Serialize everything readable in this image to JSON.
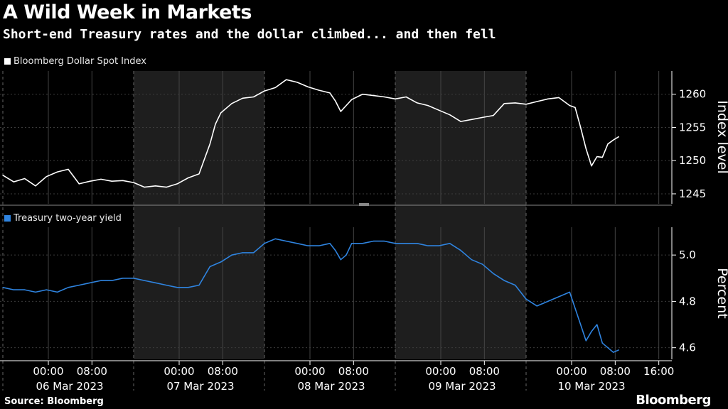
{
  "header": {
    "title": "A Wild Week in Markets",
    "subtitle": "Short-end Treasury rates and the dollar climbed... and then fell"
  },
  "footer": {
    "source": "Source: Bloomberg",
    "brand": "Bloomberg"
  },
  "colors": {
    "background": "#000000",
    "shade": "#1e1e1e",
    "dollar_line": "#ffffff",
    "yield_line": "#2f84e0"
  },
  "chart_data": [
    {
      "type": "line",
      "series": [
        {
          "name": "Bloomberg Dollar Spot Index",
          "points": [
            [
              "06 Mar 2023 00:00",
              1247.8
            ],
            [
              "06 Mar 2023 02:00",
              1246.8
            ],
            [
              "06 Mar 2023 04:00",
              1247.3
            ],
            [
              "06 Mar 2023 06:00",
              1246.2
            ],
            [
              "06 Mar 2023 08:00",
              1247.6
            ],
            [
              "06 Mar 2023 10:00",
              1248.3
            ],
            [
              "06 Mar 2023 12:00",
              1248.7
            ],
            [
              "06 Mar 2023 14:00",
              1246.5
            ],
            [
              "06 Mar 2023 16:00",
              1246.9
            ],
            [
              "06 Mar 2023 18:00",
              1247.2
            ],
            [
              "06 Mar 2023 20:00",
              1246.9
            ],
            [
              "06 Mar 2023 22:00",
              1247.0
            ],
            [
              "07 Mar 2023 00:00",
              1246.7
            ],
            [
              "07 Mar 2023 02:00",
              1246.0
            ],
            [
              "07 Mar 2023 04:00",
              1246.2
            ],
            [
              "07 Mar 2023 06:00",
              1246.0
            ],
            [
              "07 Mar 2023 08:00",
              1246.5
            ],
            [
              "07 Mar 2023 10:00",
              1247.4
            ],
            [
              "07 Mar 2023 12:00",
              1248.0
            ],
            [
              "07 Mar 2023 14:00",
              1252.5
            ],
            [
              "07 Mar 2023 15:00",
              1255.5
            ],
            [
              "07 Mar 2023 16:00",
              1257.2
            ],
            [
              "07 Mar 2023 18:00",
              1258.6
            ],
            [
              "07 Mar 2023 20:00",
              1259.4
            ],
            [
              "07 Mar 2023 22:00",
              1259.6
            ],
            [
              "08 Mar 2023 00:00",
              1260.5
            ],
            [
              "08 Mar 2023 02:00",
              1261.0
            ],
            [
              "08 Mar 2023 04:00",
              1262.2
            ],
            [
              "08 Mar 2023 06:00",
              1261.8
            ],
            [
              "08 Mar 2023 08:00",
              1261.1
            ],
            [
              "08 Mar 2023 10:00",
              1260.6
            ],
            [
              "08 Mar 2023 12:00",
              1260.2
            ],
            [
              "08 Mar 2023 13:00",
              1259.0
            ],
            [
              "08 Mar 2023 14:00",
              1257.4
            ],
            [
              "08 Mar 2023 16:00",
              1259.2
            ],
            [
              "08 Mar 2023 18:00",
              1260.0
            ],
            [
              "08 Mar 2023 20:00",
              1259.8
            ],
            [
              "08 Mar 2023 22:00",
              1259.6
            ],
            [
              "09 Mar 2023 00:00",
              1259.3
            ],
            [
              "09 Mar 2023 02:00",
              1259.6
            ],
            [
              "09 Mar 2023 04:00",
              1258.7
            ],
            [
              "09 Mar 2023 06:00",
              1258.3
            ],
            [
              "09 Mar 2023 08:00",
              1257.6
            ],
            [
              "09 Mar 2023 10:00",
              1256.9
            ],
            [
              "09 Mar 2023 12:00",
              1255.9
            ],
            [
              "09 Mar 2023 14:00",
              1256.2
            ],
            [
              "09 Mar 2023 16:00",
              1256.5
            ],
            [
              "09 Mar 2023 18:00",
              1256.8
            ],
            [
              "09 Mar 2023 20:00",
              1258.6
            ],
            [
              "09 Mar 2023 22:00",
              1258.7
            ],
            [
              "10 Mar 2023 00:00",
              1258.5
            ],
            [
              "10 Mar 2023 02:00",
              1258.9
            ],
            [
              "10 Mar 2023 04:00",
              1259.3
            ],
            [
              "10 Mar 2023 06:00",
              1259.5
            ],
            [
              "10 Mar 2023 08:00",
              1258.3
            ],
            [
              "10 Mar 2023 09:00",
              1258.0
            ],
            [
              "10 Mar 2023 10:00",
              1255.0
            ],
            [
              "10 Mar 2023 11:00",
              1251.8
            ],
            [
              "10 Mar 2023 12:00",
              1249.2
            ],
            [
              "10 Mar 2023 13:00",
              1250.6
            ],
            [
              "10 Mar 2023 14:00",
              1250.5
            ],
            [
              "10 Mar 2023 15:00",
              1252.5
            ],
            [
              "10 Mar 2023 16:00",
              1253.1
            ],
            [
              "10 Mar 2023 17:00",
              1253.6
            ]
          ]
        }
      ],
      "ylabel": "Index level",
      "yticks": [
        1245,
        1250,
        1255,
        1260
      ],
      "ylim": [
        1243.5,
        1263.5
      ]
    },
    {
      "type": "line",
      "series": [
        {
          "name": "Treasury two-year yield",
          "points": [
            [
              "06 Mar 2023 00:00",
              4.86
            ],
            [
              "06 Mar 2023 02:00",
              4.85
            ],
            [
              "06 Mar 2023 04:00",
              4.85
            ],
            [
              "06 Mar 2023 06:00",
              4.84
            ],
            [
              "06 Mar 2023 08:00",
              4.85
            ],
            [
              "06 Mar 2023 10:00",
              4.84
            ],
            [
              "06 Mar 2023 12:00",
              4.86
            ],
            [
              "06 Mar 2023 14:00",
              4.87
            ],
            [
              "06 Mar 2023 16:00",
              4.88
            ],
            [
              "06 Mar 2023 18:00",
              4.89
            ],
            [
              "06 Mar 2023 20:00",
              4.89
            ],
            [
              "06 Mar 2023 22:00",
              4.9
            ],
            [
              "07 Mar 2023 00:00",
              4.9
            ],
            [
              "07 Mar 2023 02:00",
              4.89
            ],
            [
              "07 Mar 2023 04:00",
              4.88
            ],
            [
              "07 Mar 2023 06:00",
              4.87
            ],
            [
              "07 Mar 2023 08:00",
              4.86
            ],
            [
              "07 Mar 2023 10:00",
              4.86
            ],
            [
              "07 Mar 2023 12:00",
              4.87
            ],
            [
              "07 Mar 2023 14:00",
              4.95
            ],
            [
              "07 Mar 2023 16:00",
              4.97
            ],
            [
              "07 Mar 2023 18:00",
              5.0
            ],
            [
              "07 Mar 2023 20:00",
              5.01
            ],
            [
              "07 Mar 2023 22:00",
              5.01
            ],
            [
              "08 Mar 2023 00:00",
              5.05
            ],
            [
              "08 Mar 2023 02:00",
              5.07
            ],
            [
              "08 Mar 2023 04:00",
              5.06
            ],
            [
              "08 Mar 2023 06:00",
              5.05
            ],
            [
              "08 Mar 2023 08:00",
              5.04
            ],
            [
              "08 Mar 2023 10:00",
              5.04
            ],
            [
              "08 Mar 2023 12:00",
              5.05
            ],
            [
              "08 Mar 2023 13:00",
              5.02
            ],
            [
              "08 Mar 2023 14:00",
              4.98
            ],
            [
              "08 Mar 2023 15:00",
              5.0
            ],
            [
              "08 Mar 2023 16:00",
              5.05
            ],
            [
              "08 Mar 2023 18:00",
              5.05
            ],
            [
              "08 Mar 2023 20:00",
              5.06
            ],
            [
              "08 Mar 2023 22:00",
              5.06
            ],
            [
              "09 Mar 2023 00:00",
              5.05
            ],
            [
              "09 Mar 2023 02:00",
              5.05
            ],
            [
              "09 Mar 2023 04:00",
              5.05
            ],
            [
              "09 Mar 2023 06:00",
              5.04
            ],
            [
              "09 Mar 2023 08:00",
              5.04
            ],
            [
              "09 Mar 2023 10:00",
              5.05
            ],
            [
              "09 Mar 2023 12:00",
              5.02
            ],
            [
              "09 Mar 2023 14:00",
              4.98
            ],
            [
              "09 Mar 2023 16:00",
              4.96
            ],
            [
              "09 Mar 2023 18:00",
              4.92
            ],
            [
              "09 Mar 2023 20:00",
              4.89
            ],
            [
              "09 Mar 2023 22:00",
              4.87
            ],
            [
              "10 Mar 2023 00:00",
              4.81
            ],
            [
              "10 Mar 2023 02:00",
              4.78
            ],
            [
              "10 Mar 2023 04:00",
              4.8
            ],
            [
              "10 Mar 2023 06:00",
              4.82
            ],
            [
              "10 Mar 2023 08:00",
              4.84
            ],
            [
              "10 Mar 2023 09:00",
              4.77
            ],
            [
              "10 Mar 2023 10:00",
              4.7
            ],
            [
              "10 Mar 2023 11:00",
              4.63
            ],
            [
              "10 Mar 2023 12:00",
              4.67
            ],
            [
              "10 Mar 2023 13:00",
              4.7
            ],
            [
              "10 Mar 2023 14:00",
              4.62
            ],
            [
              "10 Mar 2023 15:00",
              4.6
            ],
            [
              "10 Mar 2023 16:00",
              4.58
            ],
            [
              "10 Mar 2023 17:00",
              4.59
            ]
          ]
        }
      ],
      "ylabel": "Percent",
      "yticks": [
        "4.6",
        "4.8",
        "5.0"
      ],
      "ylim": [
        4.55,
        5.12
      ]
    }
  ],
  "x_axis": {
    "days": [
      {
        "date": "06 Mar 2023",
        "ticks": [
          "00:00",
          "08:00"
        ],
        "shaded": false
      },
      {
        "date": "07 Mar 2023",
        "ticks": [
          "00:00",
          "08:00"
        ],
        "shaded": true
      },
      {
        "date": "08 Mar 2023",
        "ticks": [
          "00:00",
          "08:00"
        ],
        "shaded": false
      },
      {
        "date": "09 Mar 2023",
        "ticks": [
          "00:00",
          "08:00"
        ],
        "shaded": true
      },
      {
        "date": "10 Mar 2023",
        "ticks": [
          "00:00",
          "08:00",
          "16:00"
        ],
        "shaded": false
      }
    ]
  }
}
